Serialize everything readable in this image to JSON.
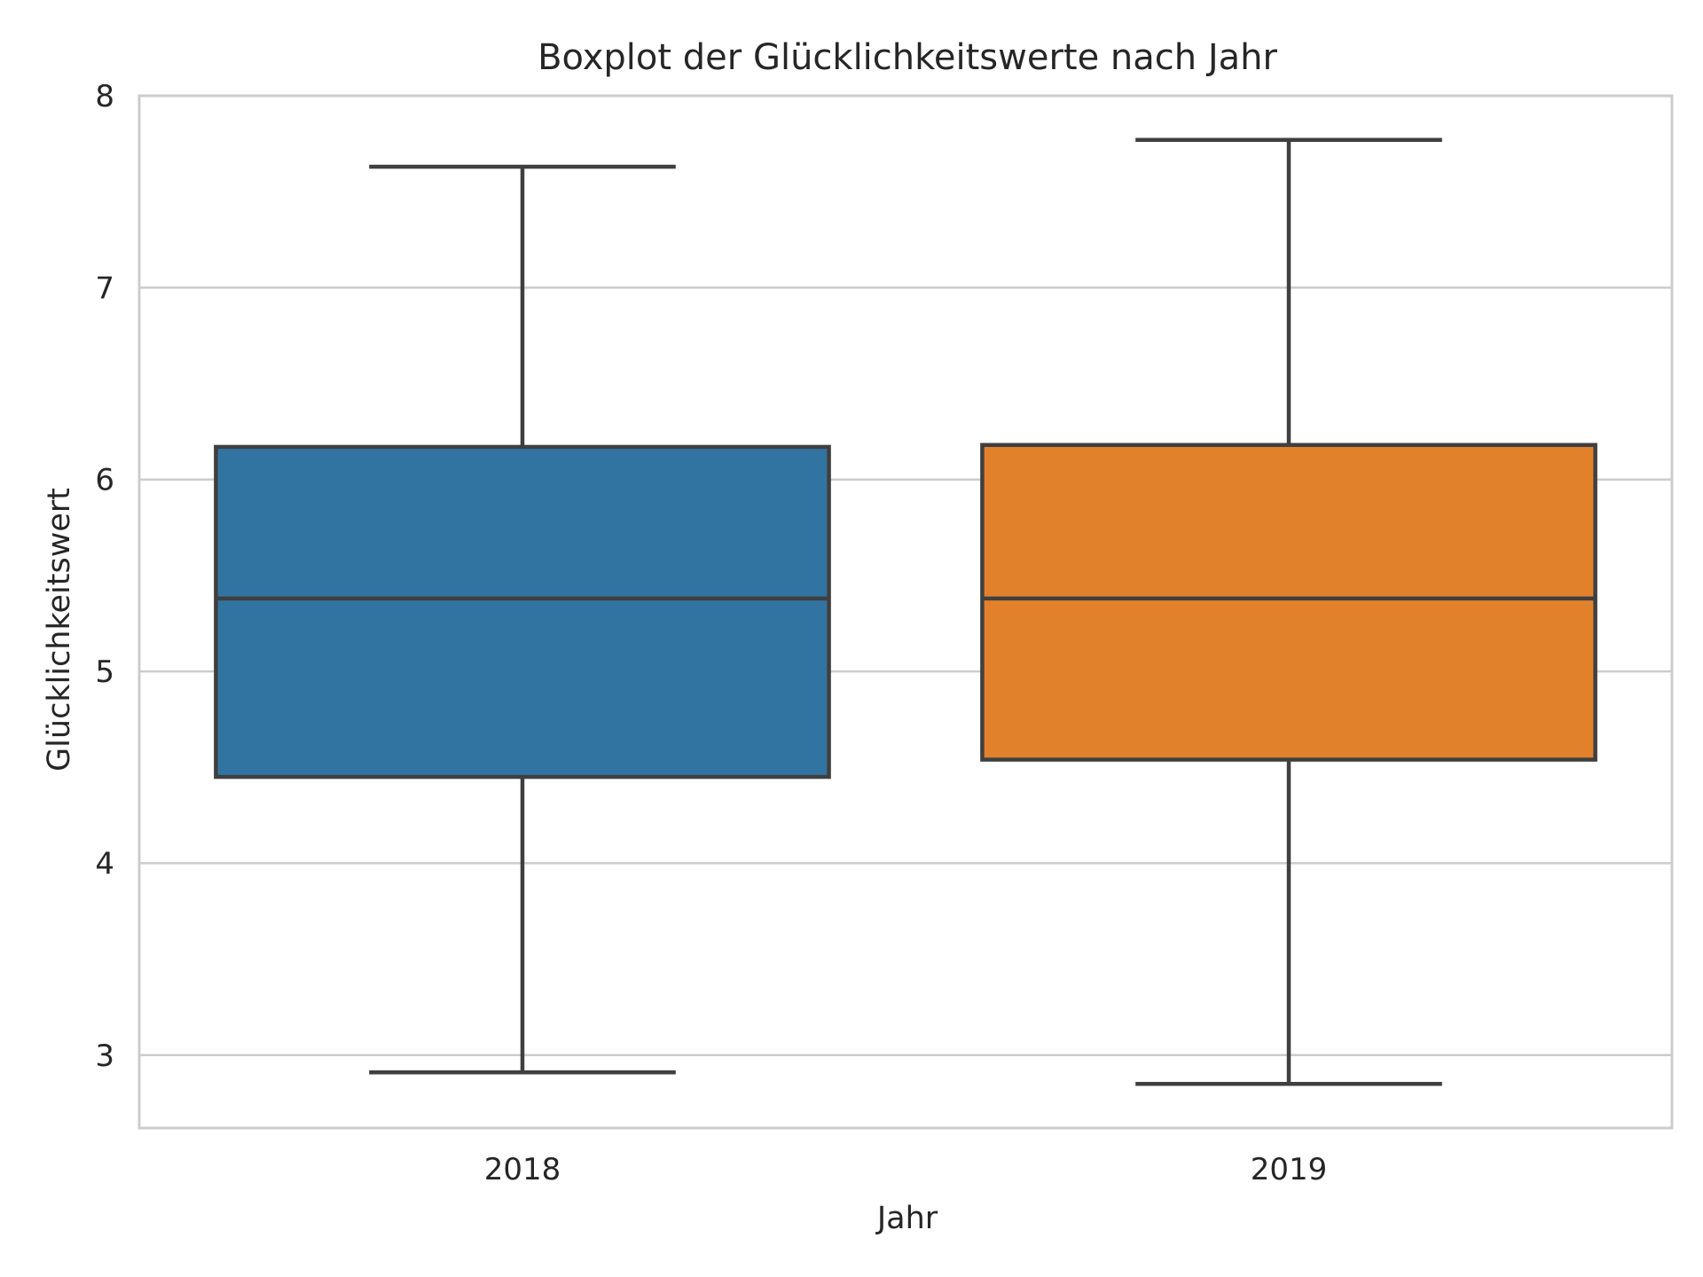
{
  "chart_data": {
    "type": "boxplot",
    "title": "Boxplot der Glücklichkeitswerte nach Jahr",
    "xlabel": "Jahr",
    "ylabel": "Glücklichkeitswert",
    "categories": [
      "2018",
      "2019"
    ],
    "boxes": [
      {
        "category": "2018",
        "whisker_low": 2.91,
        "q1": 4.45,
        "median": 5.38,
        "q3": 6.17,
        "whisker_high": 7.63,
        "color": "#3274a1"
      },
      {
        "category": "2019",
        "whisker_low": 2.85,
        "q1": 4.54,
        "median": 5.38,
        "q3": 6.18,
        "whisker_high": 7.77,
        "color": "#e1812c"
      }
    ],
    "ylim": [
      2.62,
      8.0
    ],
    "yticks": [
      3,
      4,
      5,
      6,
      7,
      8
    ],
    "grid": "horizontal",
    "legend": "none"
  },
  "colors": {
    "grid": "#cccccc",
    "frame": "#cccccc",
    "box_edge": "#3f3f3f",
    "text": "#262626"
  }
}
